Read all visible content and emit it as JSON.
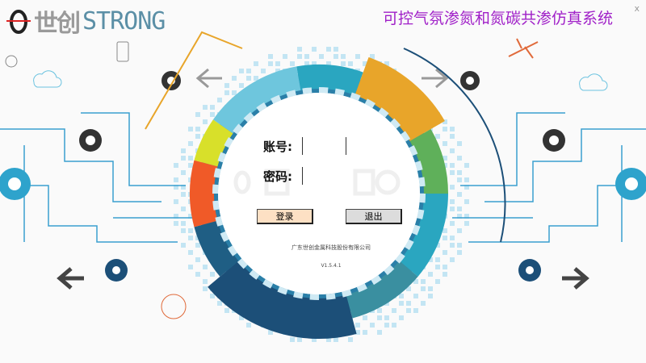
{
  "header": {
    "logo_cn": "世创",
    "logo_en": "STRONG",
    "title": "可控气氛渗氮和氮碳共渗仿真系统",
    "close_label": "x"
  },
  "login": {
    "account_label": "账号:",
    "password_label": "密码:",
    "account_value": "",
    "password_value": "",
    "login_button": "登录",
    "exit_button": "退出",
    "company": "广东世创金属科技股份有限公司",
    "version": "V1.5.4.1"
  },
  "colors": {
    "title": "#a020c8",
    "login_button_bg": "#fde0c4",
    "exit_button_bg": "#dcdcdc",
    "ring_dark": "#1c4f78",
    "ring_teal": "#2aa6c0",
    "ring_orange": "#e8a52a",
    "ring_red": "#f05a28",
    "ring_green": "#5fb05a",
    "ring_yellow": "#d8e02a"
  },
  "icons": [
    "gear-icon",
    "arrow-left-icon",
    "arrow-right-icon",
    "cloud-icon",
    "lightbulb-icon",
    "phone-icon",
    "airplane-icon",
    "close-icon"
  ]
}
